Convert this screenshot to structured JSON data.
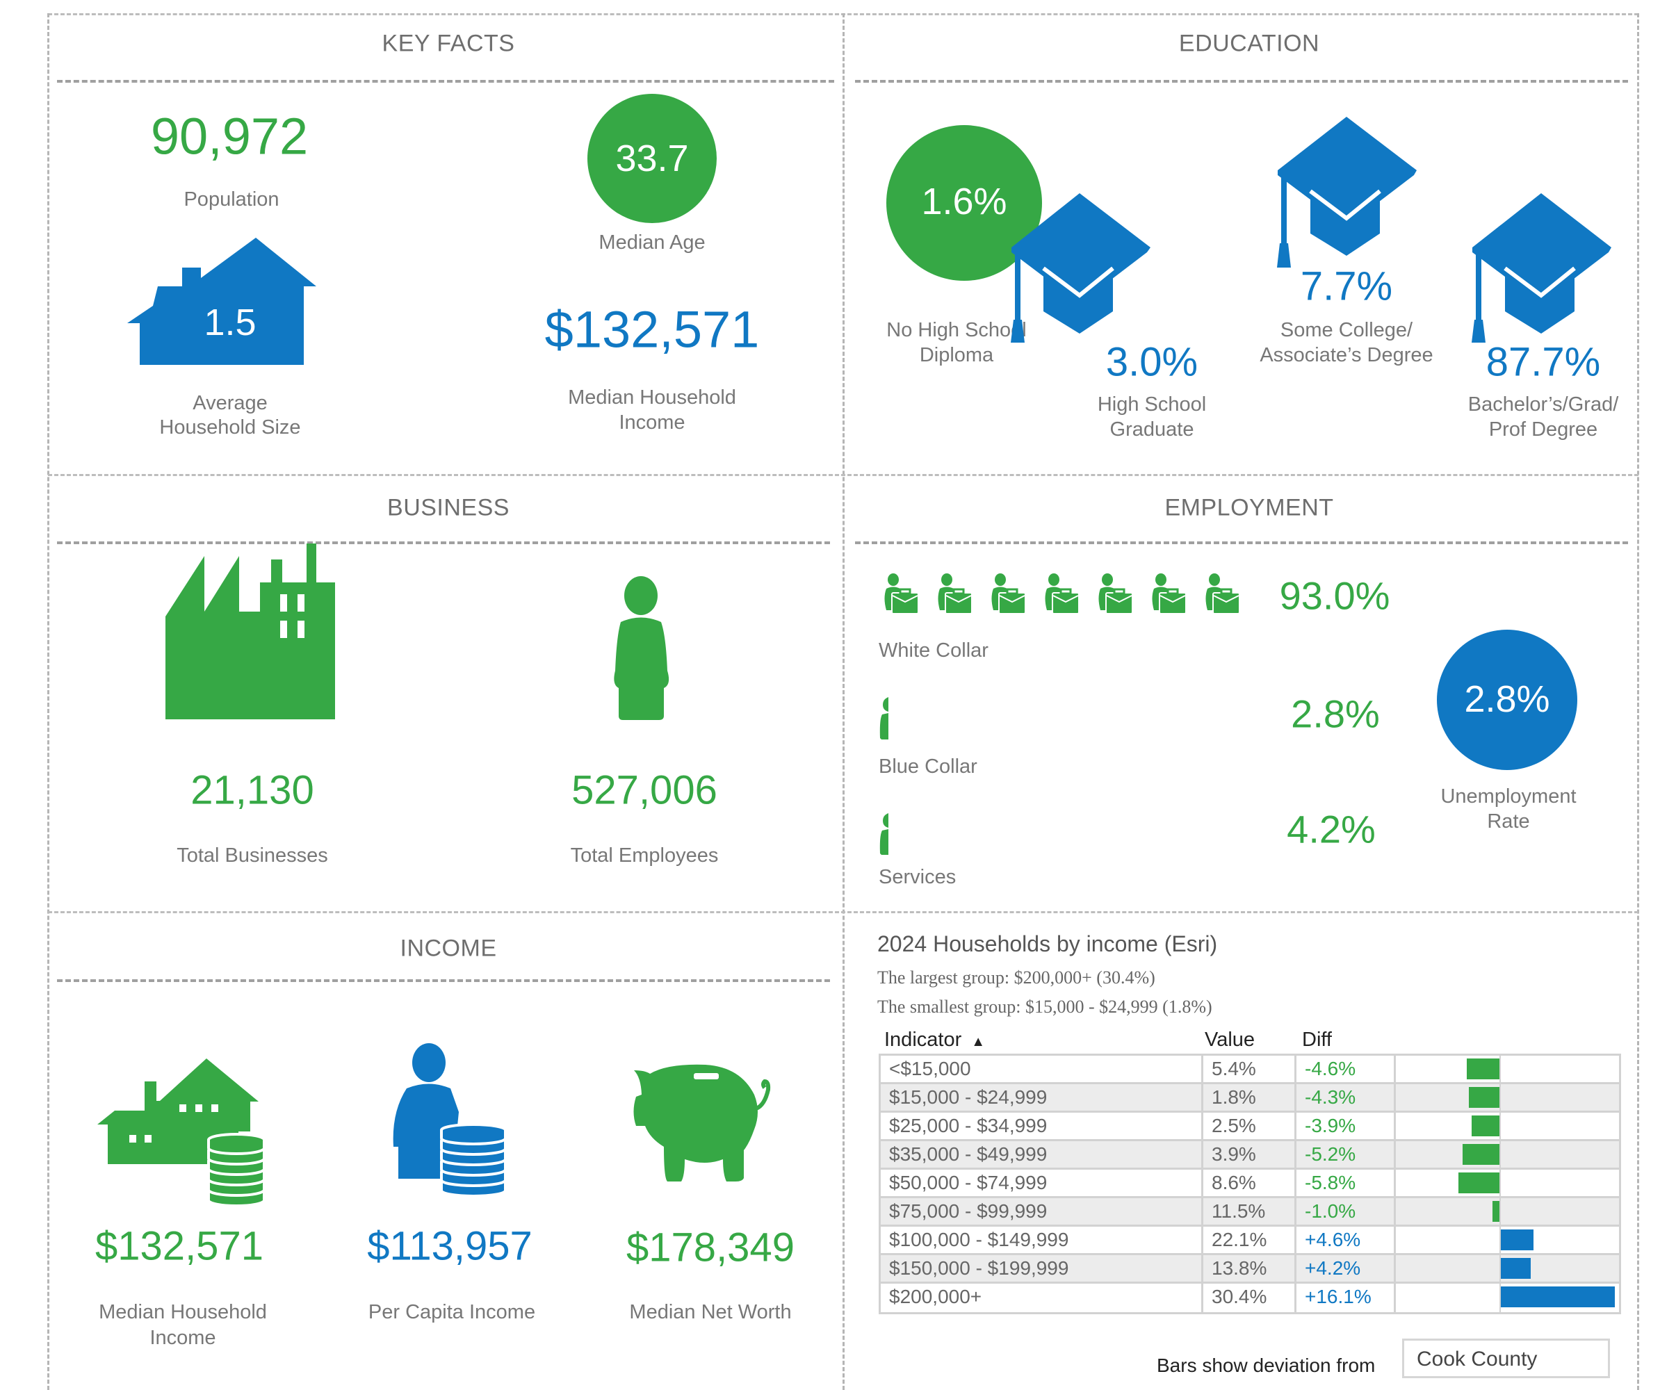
{
  "colors": {
    "green": "#36a845",
    "blue": "#1078c3",
    "border": "#b5b5b5"
  },
  "key_facts": {
    "title": "KEY FACTS",
    "population": {
      "value": "90,972",
      "label": "Population"
    },
    "median_age": {
      "value": "33.7",
      "label": "Median Age"
    },
    "avg_household_size": {
      "value": "1.5",
      "label_line1": "Average",
      "label_line2": "Household Size",
      "icon": "house-icon"
    },
    "median_household_income": {
      "value": "$132,571",
      "label_line1": "Median Household",
      "label_line2": "Income"
    }
  },
  "education": {
    "title": "EDUCATION",
    "no_high_school": {
      "value": "1.6%",
      "label_line1": "No High School",
      "label_line2": "Diploma"
    },
    "high_school_graduate": {
      "value": "3.0%",
      "label_line1": "High School",
      "label_line2": "Graduate",
      "icon": "graduation-cap-icon"
    },
    "some_college": {
      "value": "7.7%",
      "label_line1": "Some College/",
      "label_line2": "Associate’s Degree",
      "icon": "graduation-cap-icon"
    },
    "bachelors": {
      "value": "87.7%",
      "label_line1": "Bachelor’s/Grad/",
      "label_line2": "Prof Degree",
      "icon": "graduation-cap-icon"
    }
  },
  "business": {
    "title": "BUSINESS",
    "total_businesses": {
      "value": "21,130",
      "label": "Total Businesses",
      "icon": "factory-icon"
    },
    "total_employees": {
      "value": "527,006",
      "label": "Total Employees",
      "icon": "person-icon"
    }
  },
  "employment": {
    "title": "EMPLOYMENT",
    "white_collar": {
      "value": "93.0%",
      "label": "White Collar",
      "icon": "worker-briefcase-icon",
      "icon_count": 7
    },
    "blue_collar": {
      "value": "2.8%",
      "label": "Blue Collar",
      "icon": "worker-icon"
    },
    "services": {
      "value": "4.2%",
      "label": "Services",
      "icon": "worker-icon"
    },
    "unemployment_rate": {
      "value": "2.8%",
      "label_line1": "Unemployment",
      "label_line2": "Rate"
    }
  },
  "income": {
    "title": "INCOME",
    "median_household_income": {
      "value": "$132,571",
      "label_line1": "Median Household",
      "label_line2": "Income",
      "icon": "house-coins-icon"
    },
    "per_capita_income": {
      "value": "$113,957",
      "label": "Per Capita Income",
      "icon": "person-coins-icon"
    },
    "median_net_worth": {
      "value": "$178,349",
      "label": "Median Net Worth",
      "icon": "piggy-bank-icon"
    }
  },
  "households_by_income": {
    "title": "2024 Households by income (Esri)",
    "largest": "The largest group: $200,000+ (30.4%)",
    "smallest": "The smallest group: $15,000 - $24,999 (1.8%)",
    "columns": {
      "indicator": "Indicator",
      "sort_icon": "▲",
      "value": "Value",
      "diff": "Diff"
    },
    "rows": [
      {
        "indicator": "<$15,000",
        "value": "5.4%",
        "diff": "-4.6%",
        "diff_num": -4.6
      },
      {
        "indicator": "$15,000 - $24,999",
        "value": "1.8%",
        "diff": "-4.3%",
        "diff_num": -4.3
      },
      {
        "indicator": "$25,000 - $34,999",
        "value": "2.5%",
        "diff": "-3.9%",
        "diff_num": -3.9
      },
      {
        "indicator": "$35,000 - $49,999",
        "value": "3.9%",
        "diff": "-5.2%",
        "diff_num": -5.2
      },
      {
        "indicator": "$50,000 - $74,999",
        "value": "8.6%",
        "diff": "-5.8%",
        "diff_num": -5.8
      },
      {
        "indicator": "$75,000 - $99,999",
        "value": "11.5%",
        "diff": "-1.0%",
        "diff_num": -1.0
      },
      {
        "indicator": "$100,000 - $149,999",
        "value": "22.1%",
        "diff": "+4.6%",
        "diff_num": 4.6
      },
      {
        "indicator": "$150,000 - $199,999",
        "value": "13.8%",
        "diff": "+4.2%",
        "diff_num": 4.2
      },
      {
        "indicator": "$200,000+",
        "value": "30.4%",
        "diff": "+16.1%",
        "diff_num": 16.1
      }
    ],
    "bars_label": "Bars show deviation from",
    "comparison_area": "Cook County"
  }
}
